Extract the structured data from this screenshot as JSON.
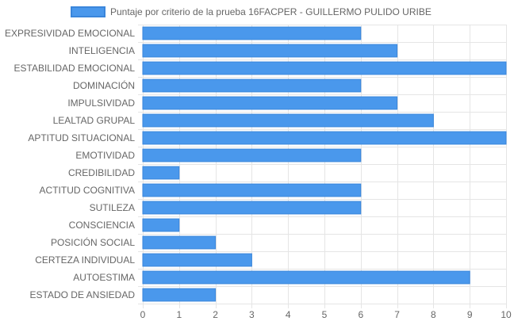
{
  "colors": {
    "bar_fill": "#4a98ec",
    "bar_stroke": "#3a86db",
    "grid": "#e5e5e5",
    "axis_text": "#666666"
  },
  "chart_data": {
    "type": "bar",
    "orientation": "horizontal",
    "legend": {
      "label": "Puntaje por criterio de la prueba 16FACPER - GUILLERMO PULIDO URIBE",
      "position": "top"
    },
    "categories": [
      "EXPRESIVIDAD EMOCIONAL",
      "INTELIGENCIA",
      "ESTABILIDAD EMOCIONAL",
      "DOMINACIÓN",
      "IMPULSIVIDAD",
      "LEALTAD GRUPAL",
      "APTITUD SITUACIONAL",
      "EMOTIVIDAD",
      "CREDIBILIDAD",
      "ACTITUD COGNITIVA",
      "SUTILEZA",
      "CONSCIENCIA",
      "POSICIÓN SOCIAL",
      "CERTEZA INDIVIDUAL",
      "AUTOESTIMA",
      "ESTADO DE ANSIEDAD"
    ],
    "series": [
      {
        "name": "Puntaje por criterio de la prueba 16FACPER - GUILLERMO PULIDO URIBE",
        "values": [
          6,
          7,
          10,
          6,
          7,
          8,
          10,
          6,
          1,
          6,
          6,
          1,
          2,
          3,
          9,
          2
        ]
      }
    ],
    "xlim": [
      0,
      10
    ],
    "xticks": [
      0,
      1,
      2,
      3,
      4,
      5,
      6,
      7,
      8,
      9,
      10
    ],
    "grid": true
  }
}
